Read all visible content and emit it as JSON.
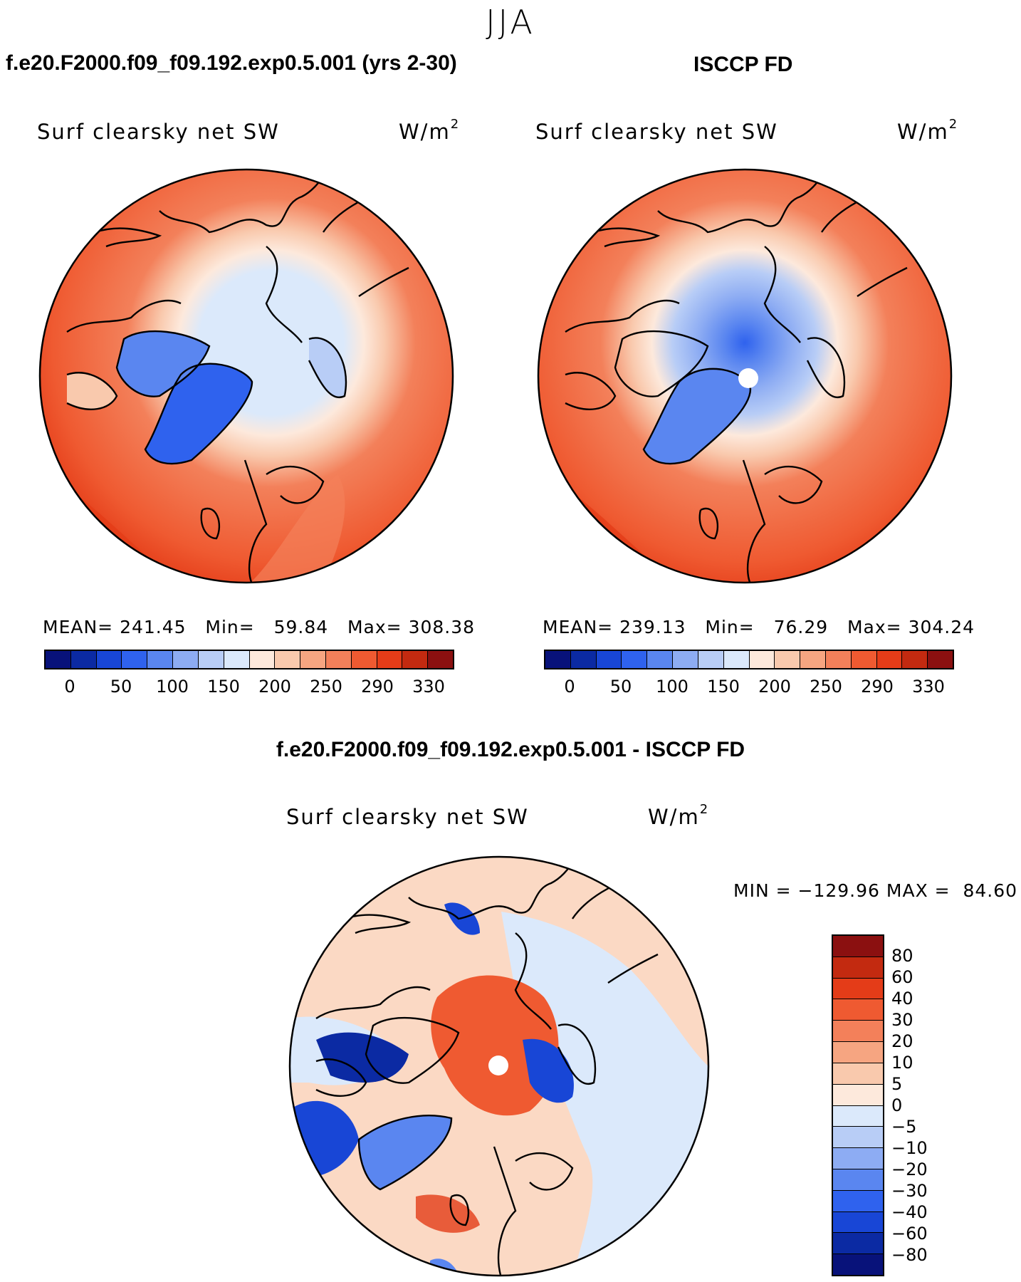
{
  "figure": {
    "season": "JJA"
  },
  "panels": {
    "model": {
      "title": "f.e20.F2000.f09_f09.192.exp0.5.001 (yrs 2-30)",
      "variable": "Surf clearsky net SW",
      "units_base": "W/m",
      "units_exp": "2",
      "mean_label": "MEAN=",
      "mean": "241.45",
      "min_label": "Min=",
      "min": "59.84",
      "max_label": "Max=",
      "max": "308.38"
    },
    "obs": {
      "title": "ISCCP FD",
      "variable": "Surf clearsky net SW",
      "units_base": "W/m",
      "units_exp": "2",
      "mean_label": "MEAN=",
      "mean": "239.13",
      "min_label": "Min=",
      "min": "76.29",
      "max_label": "Max=",
      "max": "304.24"
    },
    "diff": {
      "title": "f.e20.F2000.f09_f09.192.exp0.5.001 - ISCCP FD",
      "variable": "Surf clearsky net SW",
      "units_base": "W/m",
      "units_exp": "2",
      "min_label": "MIN =",
      "min": "−129.96",
      "max_label": "MAX =",
      "max": "84.60"
    }
  },
  "colorbars": {
    "absolute": {
      "colors": [
        "#08127a",
        "#0b2aa3",
        "#1846d6",
        "#2f62ee",
        "#5a86f0",
        "#8dacf3",
        "#b8cdf6",
        "#dbe9fb",
        "#fde9dc",
        "#f9c9ad",
        "#f6a581",
        "#f3805a",
        "#ef5a31",
        "#e43c18",
        "#c32a10",
        "#8b1010"
      ],
      "tick_labels": [
        "0",
        "50",
        "100",
        "150",
        "200",
        "250",
        "290",
        "330"
      ]
    },
    "difference": {
      "colors": [
        "#8b1010",
        "#c32a10",
        "#e43c18",
        "#ef5a31",
        "#f3805a",
        "#f6a581",
        "#f9c9ad",
        "#fde9dc",
        "#dbe9fb",
        "#b8cdf6",
        "#8dacf3",
        "#5a86f0",
        "#2f62ee",
        "#1846d6",
        "#0b2aa3",
        "#08127a"
      ],
      "tick_labels": [
        "80",
        "60",
        "40",
        "30",
        "20",
        "10",
        "5",
        "0",
        "−5",
        "−10",
        "−20",
        "−30",
        "−40",
        "−60",
        "−80"
      ]
    }
  },
  "maps": {
    "projection": "north-polar-stereographic",
    "continent_outlines": true
  }
}
